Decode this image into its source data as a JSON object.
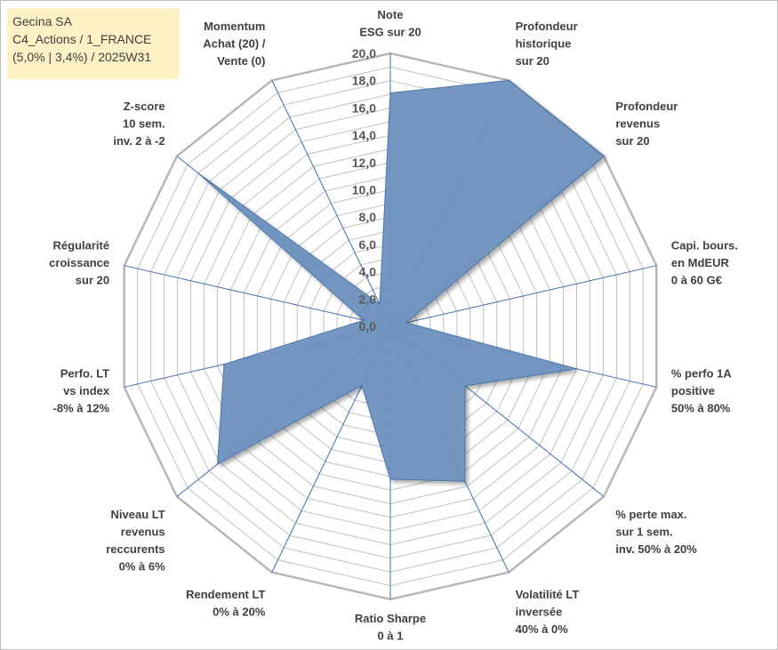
{
  "title_box": {
    "line1": "Gecina SA",
    "line2": "C4_Actions / 1_FRANCE",
    "line3": "(5,0% | 3,4%) / 2025W31",
    "bg_color": "#fdf0c4"
  },
  "chart_data": {
    "type": "radar",
    "rmin": 0,
    "rmax": 20,
    "ticks": [
      "0,0",
      "2,0",
      "4,0",
      "6,0",
      "8,0",
      "10,0",
      "12,0",
      "14,0",
      "16,0",
      "18,0",
      "20,0"
    ],
    "minor_grid_step": 1,
    "axes": [
      {
        "lines": [
          "Note",
          "ESG sur 20"
        ]
      },
      {
        "lines": [
          "Profondeur",
          "historique",
          "sur 20"
        ]
      },
      {
        "lines": [
          "Profondeur",
          "revenus",
          "sur 20"
        ]
      },
      {
        "lines": [
          "Capi. bours.",
          "en MdEUR",
          "0 à 60 G€"
        ]
      },
      {
        "lines": [
          "% perfo 1A",
          "positive",
          "50% à 80%"
        ]
      },
      {
        "lines": [
          "% perte max.",
          "sur 1 sem.",
          "inv. 50% à 20%"
        ]
      },
      {
        "lines": [
          "Volatilité LT",
          "inversée",
          "40% à 0%"
        ]
      },
      {
        "lines": [
          "Ratio Sharpe",
          "0 à 1"
        ]
      },
      {
        "lines": [
          "Rendement LT",
          "0% à 20%"
        ]
      },
      {
        "lines": [
          "Niveau LT",
          "revenus",
          "reccurents",
          "0% à 6%"
        ]
      },
      {
        "lines": [
          "Perfo. LT",
          "vs index",
          "-8% à 12%"
        ]
      },
      {
        "lines": [
          "Régularité",
          "croissance",
          "sur 20"
        ]
      },
      {
        "lines": [
          "Z-score",
          "10 sem.",
          "inv. 2 à -2"
        ]
      },
      {
        "lines": [
          "Momentum",
          "Achat (20) /",
          "Vente (0)"
        ]
      }
    ],
    "series": [
      {
        "values": [
          17.1,
          20.0,
          20.0,
          1.2,
          14.0,
          7.0,
          12.6,
          11.2,
          4.8,
          16.2,
          12.5,
          2.0,
          18.0,
          1.8
        ],
        "color": "#4a74aa"
      }
    ],
    "colors": {
      "fill": "#6f93c0",
      "stroke": "#4a74aa",
      "grid": "#c0c0c0",
      "spoke": "#3f6cb3",
      "outer": "#b7b7b7"
    }
  }
}
